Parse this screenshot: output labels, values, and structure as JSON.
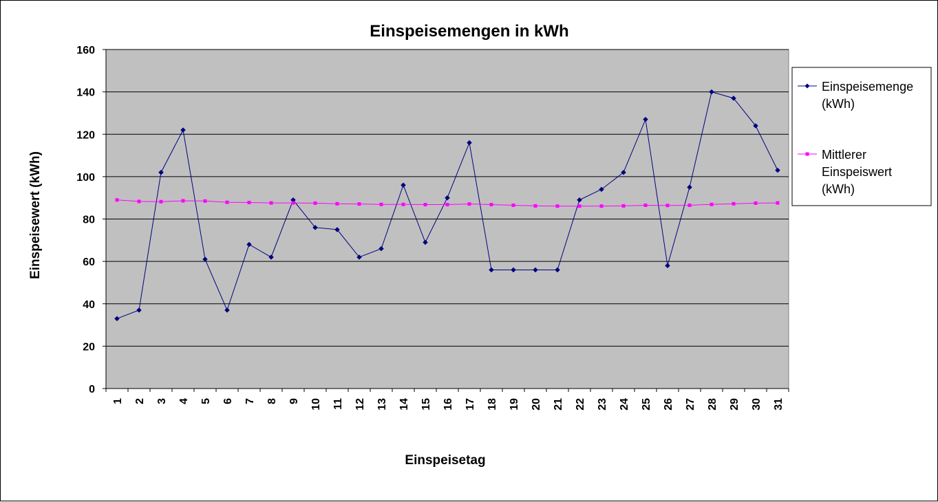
{
  "chart_data": {
    "type": "line",
    "title": "Einspeisemengen in kWh",
    "xlabel": "Einspeisetag",
    "ylabel": "Einspeisewert (kWh)",
    "ylim": [
      0,
      160
    ],
    "ytick_step": 20,
    "grid": true,
    "legend_position": "right",
    "categories": [
      "1",
      "2",
      "3",
      "4",
      "5",
      "6",
      "7",
      "8",
      "9",
      "10",
      "11",
      "12",
      "13",
      "14",
      "15",
      "16",
      "17",
      "18",
      "19",
      "20",
      "21",
      "22",
      "23",
      "24",
      "25",
      "26",
      "27",
      "28",
      "29",
      "30",
      "31"
    ],
    "series": [
      {
        "name": "Einspeisemenge (kWh)",
        "legend_lines": [
          "Einspeisemenge",
          "(kWh)"
        ],
        "color": "#000080",
        "marker": "diamond",
        "values": [
          33,
          37,
          102,
          122,
          61,
          37,
          68,
          62,
          89,
          76,
          75,
          62,
          66,
          96,
          69,
          90,
          116,
          56,
          56,
          56,
          56,
          89,
          94,
          102,
          127,
          58,
          95,
          140,
          137,
          124,
          103
        ]
      },
      {
        "name": "Mittlerer Einspeiswert (kWh)",
        "legend_lines": [
          "Mittlerer",
          "Einspeiswert",
          "(kWh)"
        ],
        "color": "#ff00ff",
        "marker": "square",
        "values": [
          89,
          88.3,
          88.2,
          88.6,
          88.5,
          87.9,
          87.8,
          87.6,
          87.6,
          87.5,
          87.2,
          87.1,
          86.9,
          86.9,
          86.8,
          86.8,
          87.1,
          86.8,
          86.5,
          86.2,
          86.1,
          86.1,
          86.1,
          86.2,
          86.5,
          86.4,
          86.5,
          86.9,
          87.2,
          87.5,
          87.6
        ]
      }
    ]
  }
}
